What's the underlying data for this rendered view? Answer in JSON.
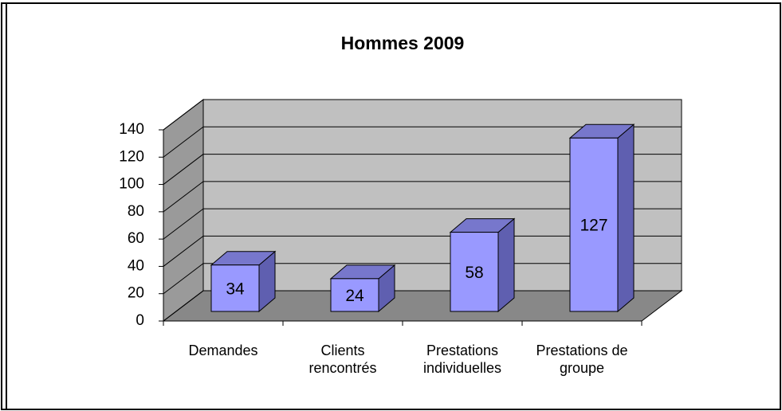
{
  "chart_data": {
    "type": "bar3d",
    "title": "Hommes 2009",
    "categories": [
      "Demandes",
      "Clients rencontrés",
      "Prestations individuelles",
      "Prestations de groupe"
    ],
    "values": [
      34,
      24,
      58,
      127
    ],
    "color": "#9999ff",
    "ylim": [
      0,
      140
    ],
    "yticks": [
      0,
      20,
      40,
      60,
      80,
      100,
      120,
      140
    ],
    "grid": true
  }
}
